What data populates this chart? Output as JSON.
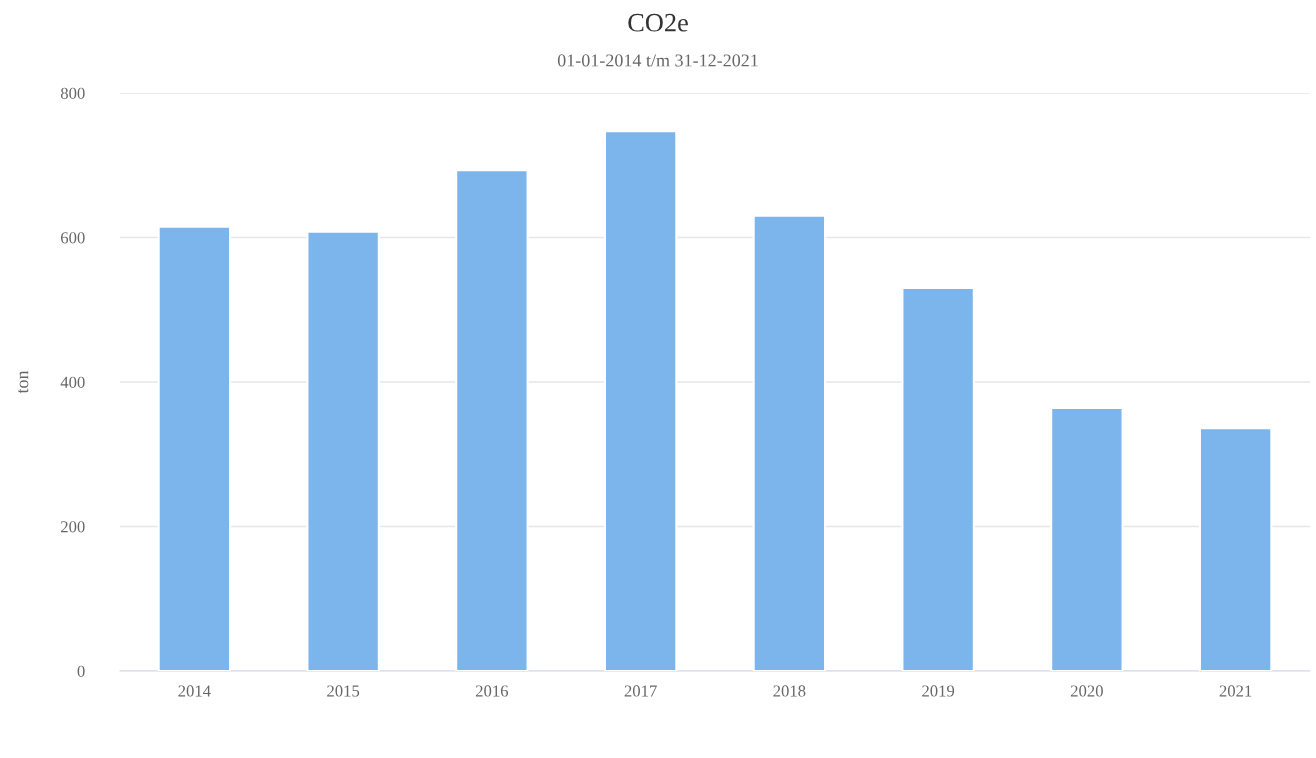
{
  "chart_data": {
    "type": "bar",
    "title": "CO2e",
    "subtitle": "01-01-2014 t/m 31-12-2021",
    "ylabel": "ton",
    "categories": [
      "2014",
      "2015",
      "2016",
      "2017",
      "2018",
      "2019",
      "2020",
      "2021"
    ],
    "series": [
      {
        "color": "#7cb5ec",
        "values": [
          615,
          608,
          693,
          747,
          630,
          530,
          364,
          336
        ]
      }
    ],
    "ylim": [
      0,
      800
    ],
    "yticks": [
      0,
      200,
      400,
      600,
      800
    ],
    "grid": "y"
  }
}
